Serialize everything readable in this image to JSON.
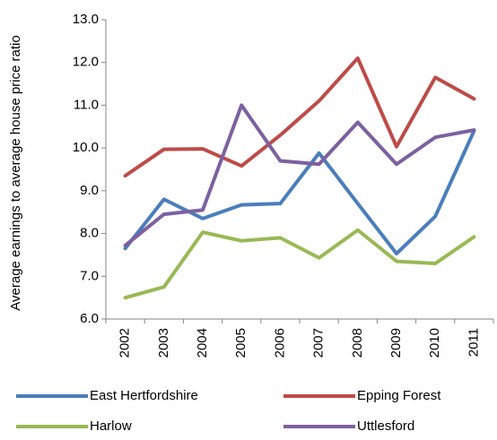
{
  "chart_data": {
    "type": "line",
    "y_label": "Average earnings to average house price ratio",
    "categories": [
      "2002",
      "2003",
      "2004",
      "2005",
      "2006",
      "2007",
      "2008",
      "2009",
      "2010",
      "2011"
    ],
    "series": [
      {
        "name": "East Hertfordshire",
        "color": "#4a7ebb",
        "values": [
          7.65,
          8.8,
          8.35,
          8.67,
          8.7,
          9.88,
          8.7,
          7.53,
          8.4,
          10.4
        ]
      },
      {
        "name": "Epping Forest",
        "color": "#be4b48",
        "values": [
          9.35,
          9.97,
          9.98,
          9.58,
          10.3,
          11.1,
          12.1,
          10.03,
          11.65,
          11.15
        ]
      },
      {
        "name": "Harlow",
        "color": "#98b954",
        "values": [
          6.5,
          6.75,
          8.03,
          7.83,
          7.9,
          7.43,
          8.08,
          7.35,
          7.3,
          7.92
        ]
      },
      {
        "name": "Uttlesford",
        "color": "#7d60a0",
        "values": [
          7.72,
          8.45,
          8.55,
          11.0,
          9.7,
          9.62,
          10.6,
          9.62,
          10.25,
          10.42
        ]
      }
    ],
    "ylim": [
      6,
      13
    ],
    "yticks": [
      {
        "value": 6,
        "label": "6.0"
      },
      {
        "value": 7,
        "label": "7.0"
      },
      {
        "value": 8,
        "label": "8.0"
      },
      {
        "value": 9,
        "label": "9.0"
      },
      {
        "value": 10,
        "label": "10.0"
      },
      {
        "value": 11,
        "label": "11.0"
      },
      {
        "value": 12,
        "label": "12.0"
      },
      {
        "value": 13,
        "label": "13.0"
      }
    ],
    "grid": false,
    "legend": "bottom"
  }
}
